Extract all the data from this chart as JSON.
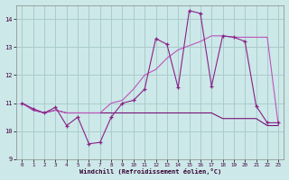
{
  "xlabel": "Windchill (Refroidissement éolien,°C)",
  "background_color": "#cce8e8",
  "grid_color": "#aacccc",
  "ylim": [
    9,
    14.5
  ],
  "xlim": [
    -0.5,
    23.5
  ],
  "yticks": [
    9,
    10,
    11,
    12,
    13,
    14
  ],
  "xticks": [
    0,
    1,
    2,
    3,
    4,
    5,
    6,
    7,
    8,
    9,
    10,
    11,
    12,
    13,
    14,
    15,
    16,
    17,
    18,
    19,
    20,
    21,
    22,
    23
  ],
  "line1_x": [
    0,
    1,
    2,
    3,
    4,
    5,
    6,
    7,
    8,
    9,
    10,
    11,
    12,
    13,
    14,
    15,
    16,
    17,
    18,
    19,
    20,
    21,
    22,
    23
  ],
  "line1_y": [
    11.0,
    10.8,
    10.65,
    10.85,
    10.2,
    10.5,
    9.55,
    9.6,
    10.5,
    11.0,
    11.1,
    11.5,
    13.3,
    13.1,
    11.55,
    14.3,
    14.2,
    11.6,
    13.4,
    13.35,
    13.2,
    10.9,
    10.3,
    10.3
  ],
  "line2_x": [
    0,
    1,
    2,
    3,
    4,
    5,
    6,
    7,
    8,
    9,
    10,
    11,
    12,
    13,
    14,
    15,
    16,
    17,
    18,
    19,
    20,
    21,
    22,
    23
  ],
  "line2_y": [
    11.0,
    10.75,
    10.65,
    10.75,
    10.65,
    10.65,
    10.65,
    10.65,
    10.65,
    10.65,
    10.65,
    10.65,
    10.65,
    10.65,
    10.65,
    10.65,
    10.65,
    10.65,
    10.45,
    10.45,
    10.45,
    10.45,
    10.2,
    10.2
  ],
  "line3_x": [
    0,
    1,
    2,
    3,
    4,
    5,
    6,
    7,
    8,
    9,
    10,
    11,
    12,
    13,
    14,
    15,
    16,
    17,
    18,
    19,
    20,
    21,
    22,
    23
  ],
  "line3_y": [
    11.0,
    10.75,
    10.65,
    10.75,
    10.65,
    10.65,
    10.65,
    10.65,
    11.0,
    11.1,
    11.5,
    12.0,
    12.2,
    12.6,
    12.9,
    13.05,
    13.2,
    13.4,
    13.4,
    13.35,
    13.35,
    13.35,
    13.35,
    10.2
  ],
  "line_color1": "#882288",
  "line_color2": "#882288",
  "line_color3": "#aa44aa"
}
